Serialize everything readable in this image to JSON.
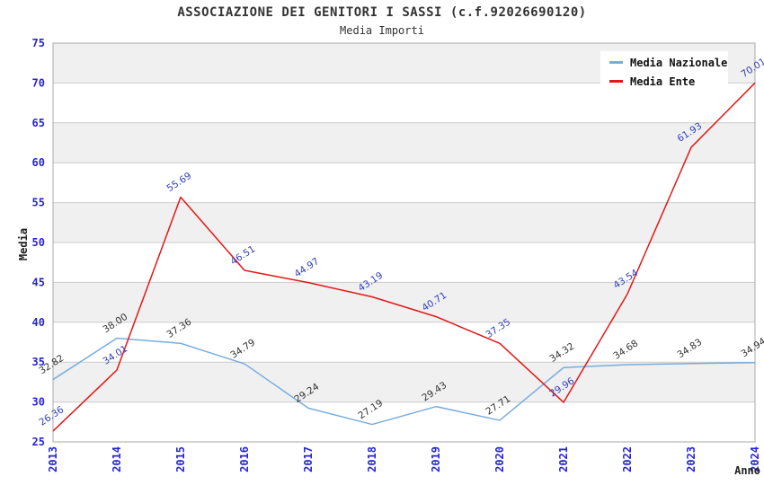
{
  "chart_data": {
    "type": "line",
    "title": "ASSOCIAZIONE DEI GENITORI I SASSI (c.f.92026690120)",
    "subtitle": "Media Importi",
    "xlabel": "Anno",
    "ylabel": "Media",
    "x": [
      "2013",
      "2014",
      "2015",
      "2016",
      "2017",
      "2018",
      "2019",
      "2020",
      "2021",
      "2022",
      "2023",
      "2024"
    ],
    "ylim": [
      25,
      75
    ],
    "ytick_step": 5,
    "yticks": [
      25,
      30,
      35,
      40,
      45,
      50,
      55,
      60,
      65,
      70,
      75
    ],
    "series": [
      {
        "name": "Media Nazionale",
        "color": "#78ade0",
        "label_color": "#333333",
        "values": [
          32.82,
          38.0,
          37.36,
          34.79,
          29.24,
          27.19,
          29.43,
          27.71,
          34.32,
          34.68,
          34.83,
          34.94
        ]
      },
      {
        "name": "Media Ente",
        "color": "#e41717",
        "label_color": "#3340bb",
        "values": [
          26.36,
          34.01,
          55.69,
          46.51,
          44.97,
          43.19,
          40.71,
          37.35,
          29.96,
          43.54,
          61.93,
          70.01
        ]
      }
    ],
    "grid": true,
    "legend_position": "top-right",
    "band_colors": [
      "#f0f0f0",
      "#ffffff"
    ],
    "grid_color": "#cccccc",
    "plot_border_color": "#a9a9a9",
    "axis_tick_color": "#2525d2"
  }
}
